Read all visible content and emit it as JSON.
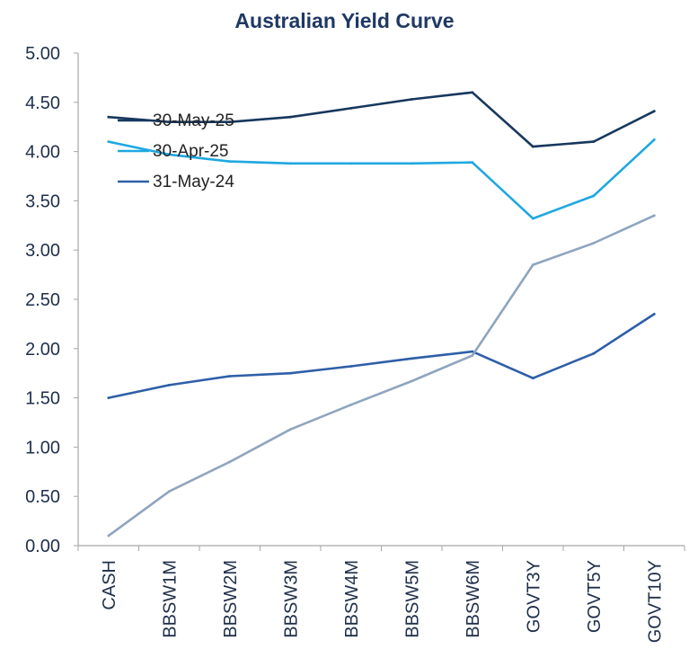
{
  "chart_data": {
    "type": "line",
    "title": "Australian Yield Curve",
    "xlabel": "",
    "ylabel": "",
    "categories": [
      "CASH",
      "BBSW1M",
      "BBSW2M",
      "BBSW3M",
      "BBSW4M",
      "BBSW5M",
      "BBSW6M",
      "GOVT3Y",
      "GOVT5Y",
      "GOVT10Y"
    ],
    "ylim": [
      0,
      5
    ],
    "yticks": [
      "0.00",
      "0.50",
      "1.00",
      "1.50",
      "2.00",
      "2.50",
      "3.00",
      "3.50",
      "4.00",
      "4.50",
      "5.00"
    ],
    "grid": false,
    "legend_position": "top-left",
    "series": [
      {
        "name": "30-May-25",
        "color": "#17375e",
        "values": [
          4.35,
          4.3,
          4.3,
          4.35,
          4.44,
          4.53,
          4.6,
          4.05,
          4.1,
          4.41
        ]
      },
      {
        "name": "30-Apr-25",
        "color": "#1fa8e0",
        "values": [
          4.1,
          3.97,
          3.9,
          3.88,
          3.88,
          3.88,
          3.89,
          3.32,
          3.55,
          4.12
        ]
      },
      {
        "name": "31-May-24",
        "color": "#2e5fa8",
        "values": [
          1.5,
          1.63,
          1.72,
          1.75,
          1.82,
          1.9,
          1.97,
          1.7,
          1.95,
          2.35
        ]
      },
      {
        "name": "",
        "color": "#8fa5bf",
        "values": [
          0.1,
          0.55,
          0.85,
          1.18,
          1.43,
          1.67,
          1.93,
          2.85,
          3.07,
          3.35
        ]
      }
    ]
  }
}
